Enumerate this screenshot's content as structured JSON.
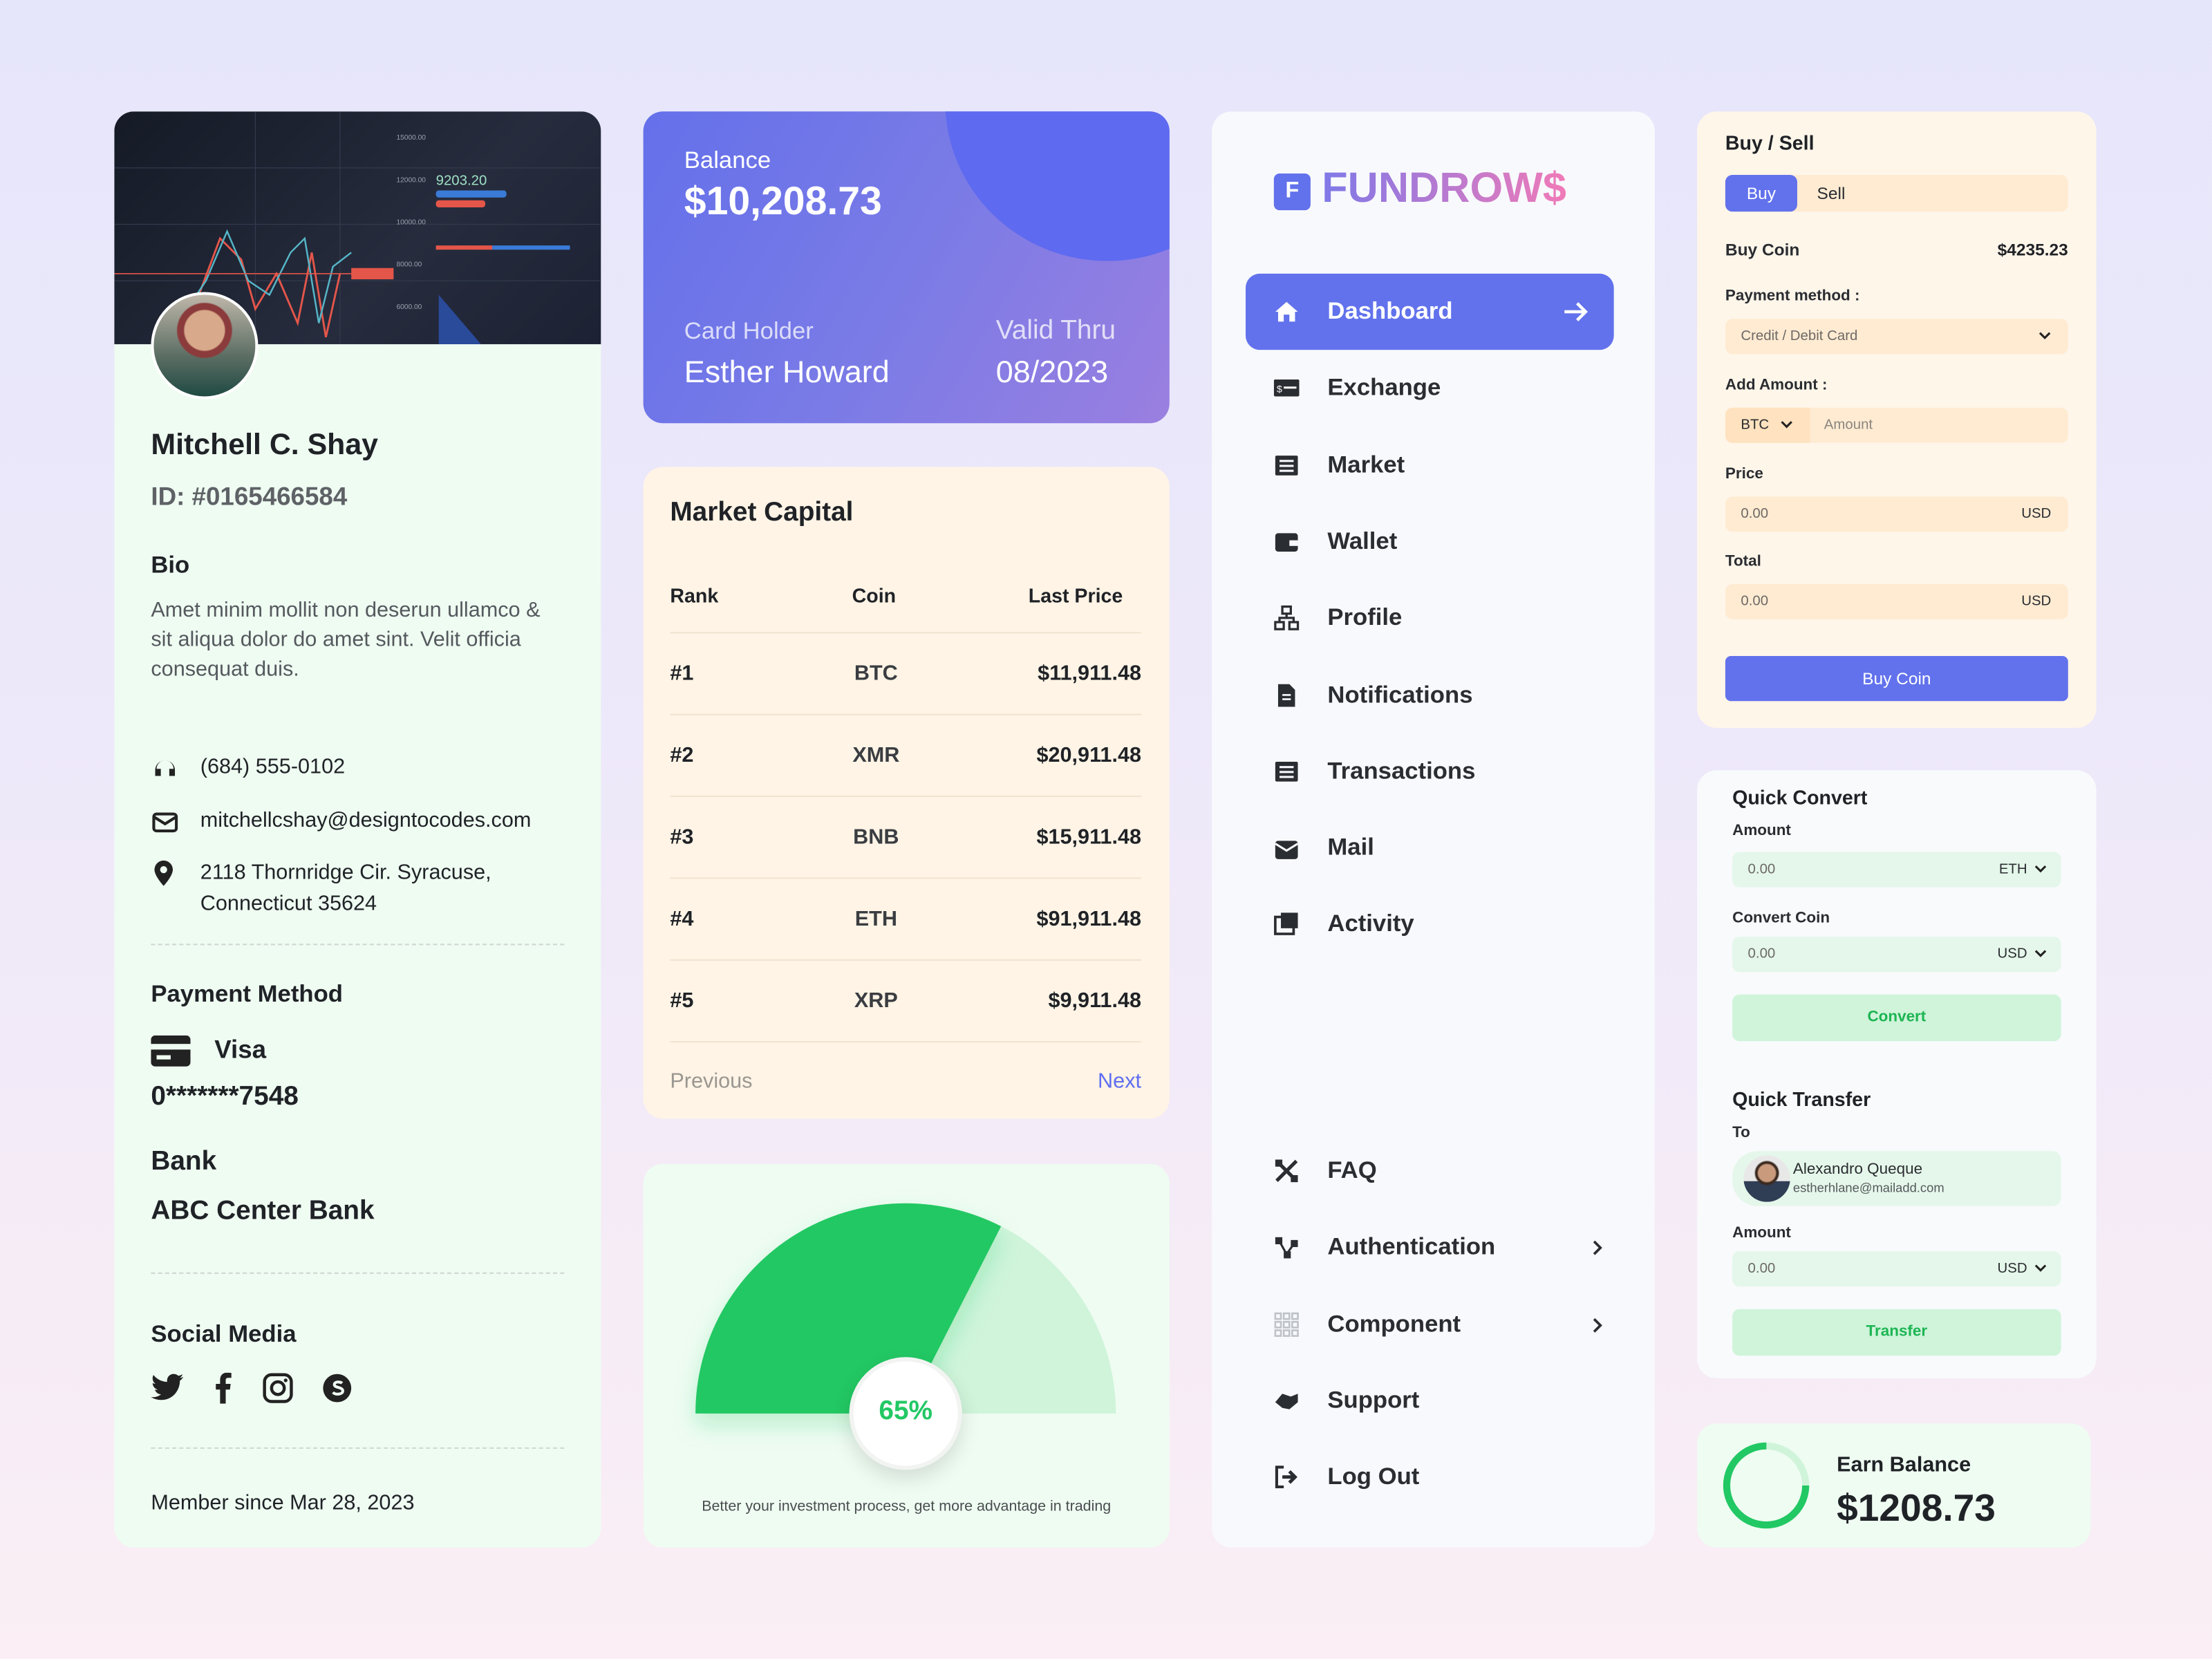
{
  "colors": {
    "accent": "#6272ec",
    "green": "#22c864",
    "light_green": "#cff4da",
    "cream": "#fff4e6",
    "mint": "#effcf2"
  },
  "profile": {
    "name": "Mitchell C. Shay",
    "id": "ID: #0165466584",
    "bio_title": "Bio",
    "bio": "Amet minim mollit non deserun ullamco & sit aliqua dolor do amet sint. Velit officia consequat duis.",
    "phone": "(684) 555-0102",
    "email": "mitchellcshay@designtocodes.com",
    "address_line1": "2118 Thornridge Cir. Syracuse,",
    "address_line2": "Connecticut 35624",
    "payment_title": "Payment Method",
    "card_type": "Visa",
    "card_number": "0*******7548",
    "bank_title": "Bank",
    "bank_name": "ABC Center Bank",
    "social_title": "Social Media",
    "social_icons": [
      "twitter-icon",
      "facebook-icon",
      "instagram-icon",
      "skype-icon"
    ],
    "member_since": "Member since Mar 28, 2023"
  },
  "balance_card": {
    "label": "Balance",
    "amount": "$10,208.73",
    "holder_label": "Card Holder",
    "holder": "Esther Howard",
    "valid_label": "Valid Thru",
    "valid": "08/2023"
  },
  "market": {
    "title": "Market Capital",
    "columns": [
      "Rank",
      "Coin",
      "Last Price"
    ],
    "rows": [
      [
        "#1",
        "BTC",
        "$11,911.48"
      ],
      [
        "#2",
        "XMR",
        "$20,911.48"
      ],
      [
        "#3",
        "BNB",
        "$15,911.48"
      ],
      [
        "#4",
        "ETH",
        "$91,911.48"
      ],
      [
        "#5",
        "XRP",
        "$9,911.48"
      ]
    ],
    "prev": "Previous",
    "next": "Next"
  },
  "gauge": {
    "value": 65,
    "label": "65%",
    "caption": "Better your investment process, get more advantage in trading"
  },
  "nav": {
    "brand": "FUNDROW$",
    "brand_letter": "F",
    "items": [
      {
        "label": "Dashboard",
        "icon": "home-icon",
        "active": true
      },
      {
        "label": "Exchange",
        "icon": "exchange-icon"
      },
      {
        "label": "Market",
        "icon": "market-icon"
      },
      {
        "label": "Wallet",
        "icon": "wallet-icon"
      },
      {
        "label": "Profile",
        "icon": "profile-icon"
      },
      {
        "label": "Notifications",
        "icon": "notifications-icon"
      },
      {
        "label": "Transactions",
        "icon": "transactions-icon"
      },
      {
        "label": "Mail",
        "icon": "mail-icon"
      },
      {
        "label": "Activity",
        "icon": "activity-icon"
      }
    ],
    "bottom_items": [
      {
        "label": "FAQ",
        "icon": "faq-icon"
      },
      {
        "label": "Authentication",
        "icon": "authentication-icon",
        "chevron": true
      },
      {
        "label": "Component",
        "icon": "component-icon",
        "chevron": true
      },
      {
        "label": "Support",
        "icon": "support-icon"
      },
      {
        "label": "Log Out",
        "icon": "logout-icon"
      }
    ]
  },
  "buy_sell": {
    "title": "Buy / Sell",
    "tab_buy": "Buy",
    "tab_sell": "Sell",
    "buy_coin_label": "Buy Coin",
    "buy_coin_value": "$4235.23",
    "payment_label": "Payment method :",
    "payment_value": "Credit / Debit Card",
    "amount_label": "Add Amount :",
    "coin": "BTC",
    "amount_placeholder": "Amount",
    "price_label": "Price",
    "price_value": "0.00",
    "price_unit": "USD",
    "total_label": "Total",
    "total_value": "0.00",
    "total_unit": "USD",
    "button": "Buy Coin"
  },
  "quick_convert": {
    "title": "Quick Convert",
    "amount_label": "Amount",
    "amount_value": "0.00",
    "amount_unit": "ETH",
    "convert_label": "Convert Coin",
    "convert_value": "0.00",
    "convert_unit": "USD",
    "button": "Convert"
  },
  "quick_transfer": {
    "title": "Quick Transfer",
    "to_label": "To",
    "recipient_name": "Alexandro Queque",
    "recipient_email": "estherhlane@mailadd.com",
    "amount_label": "Amount",
    "amount_value": "0.00",
    "amount_unit": "USD",
    "button": "Transfer"
  },
  "earn": {
    "title": "Earn Balance",
    "amount": "$1208.73",
    "progress": 75
  }
}
